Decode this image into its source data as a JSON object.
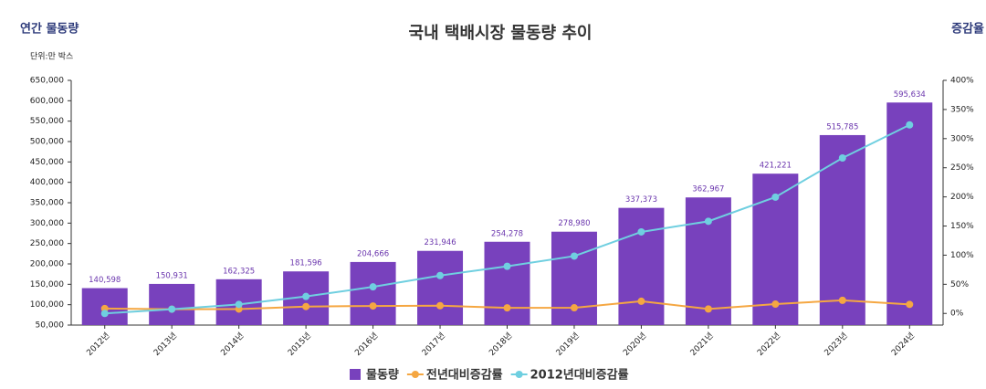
{
  "chart_data": {
    "type": "bar",
    "title": "국내 택배시장 물동량 추이",
    "y_axis_label": "연간 물동량",
    "y2_axis_label": "증감율",
    "unit_note": "단위:만 박스",
    "categories": [
      "2012년",
      "2013년",
      "2014년",
      "2015년",
      "2016년",
      "2017년",
      "2018년",
      "2019년",
      "2020년",
      "2021년",
      "2022년",
      "2023년",
      "2024년"
    ],
    "series": [
      {
        "name": "물동량",
        "type": "bar",
        "color": "#7841bd",
        "values": [
          140598,
          150931,
          162325,
          181596,
          204666,
          231946,
          254278,
          278980,
          337373,
          362967,
          421221,
          515785,
          595634
        ],
        "value_labels": [
          "140,598",
          "150,931",
          "162,325",
          "181,596",
          "204,666",
          "231,946",
          "254,278",
          "278,980",
          "337,373",
          "362,967",
          "421,221",
          "515,785",
          "595,634"
        ]
      },
      {
        "name": "전년대비증감률",
        "type": "line",
        "axis": "y2",
        "color": "#f5a742",
        "values": [
          8.4,
          7.3,
          7.5,
          11.8,
          12.8,
          13.3,
          9.6,
          9.7,
          20.9,
          7.6,
          16.0,
          22.5,
          15.5
        ]
      },
      {
        "name": "2012년대비증감률",
        "type": "line",
        "axis": "y2",
        "color": "#6fcfe0",
        "values": [
          0,
          7.3,
          15.5,
          29.1,
          45.6,
          65.0,
          80.9,
          98.4,
          139.9,
          158.1,
          199.6,
          266.8,
          323.6
        ]
      }
    ],
    "ylim": [
      50000,
      650000
    ],
    "yticks": [
      {
        "value": 50000,
        "label": "50,000"
      },
      {
        "value": 100000,
        "label": "100,000"
      },
      {
        "value": 150000,
        "label": "150,000"
      },
      {
        "value": 200000,
        "label": "200,000"
      },
      {
        "value": 250000,
        "label": "250,000"
      },
      {
        "value": 300000,
        "label": "300,000"
      },
      {
        "value": 350000,
        "label": "350,000"
      },
      {
        "value": 400000,
        "label": "400,000"
      },
      {
        "value": 450000,
        "label": "450,000"
      },
      {
        "value": 500000,
        "label": "500,000"
      },
      {
        "value": 550000,
        "label": "550,000"
      },
      {
        "value": 600000,
        "label": "600,000"
      },
      {
        "value": 650000,
        "label": "650,000"
      }
    ],
    "y2lim": [
      -20,
      400
    ],
    "y2ticks": [
      {
        "value": 0,
        "label": "0%"
      },
      {
        "value": 50,
        "label": "50%"
      },
      {
        "value": 100,
        "label": "100%"
      },
      {
        "value": 150,
        "label": "150%"
      },
      {
        "value": 200,
        "label": "200%"
      },
      {
        "value": 250,
        "label": "250%"
      },
      {
        "value": 300,
        "label": "300%"
      },
      {
        "value": 350,
        "label": "350%"
      },
      {
        "value": 400,
        "label": "400%"
      }
    ],
    "grid": false
  }
}
